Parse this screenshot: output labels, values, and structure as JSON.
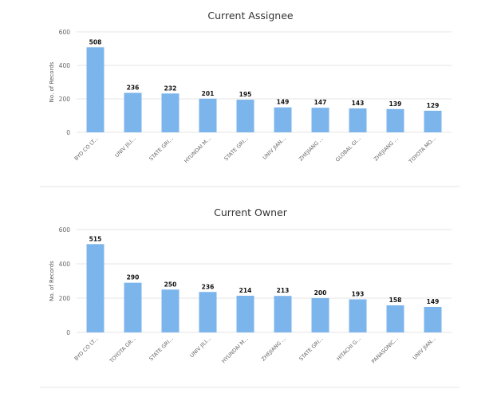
{
  "chart_data": [
    {
      "type": "bar",
      "title": "Current Assignee",
      "ylabel": "No. of Records",
      "xlabel": "",
      "ylim": [
        0,
        600
      ],
      "yticks": [
        0,
        200,
        400,
        600
      ],
      "grid": true,
      "bar_color": "#7cb5ec",
      "categories": [
        "BYD CO LT...",
        "UNIV JILI...",
        "STATE GRI...",
        "HYUNDAI M...",
        "STATE GRI...",
        "UNIV JIAN...",
        "ZHEJIANG ...",
        "GLOBAL GI...",
        "ZHEJIANG ...",
        "TOYOTA MO..."
      ],
      "values": [
        508,
        236,
        232,
        201,
        195,
        149,
        147,
        143,
        139,
        129
      ]
    },
    {
      "type": "bar",
      "title": "Current Owner",
      "ylabel": "No. of Records",
      "xlabel": "",
      "ylim": [
        0,
        600
      ],
      "yticks": [
        0,
        200,
        400,
        600
      ],
      "grid": true,
      "bar_color": "#7cb5ec",
      "categories": [
        "BYD CO LT...",
        "TOYOTA GR...",
        "STATE GRI...",
        "UNIV JILI...",
        "HYUNDAI M...",
        "ZHEJIANG ...",
        "STATE GRI...",
        "HITACHI G...",
        "PANASONIC...",
        "UNIV JIAN..."
      ],
      "values": [
        515,
        290,
        250,
        236,
        214,
        213,
        200,
        193,
        158,
        149
      ]
    }
  ]
}
